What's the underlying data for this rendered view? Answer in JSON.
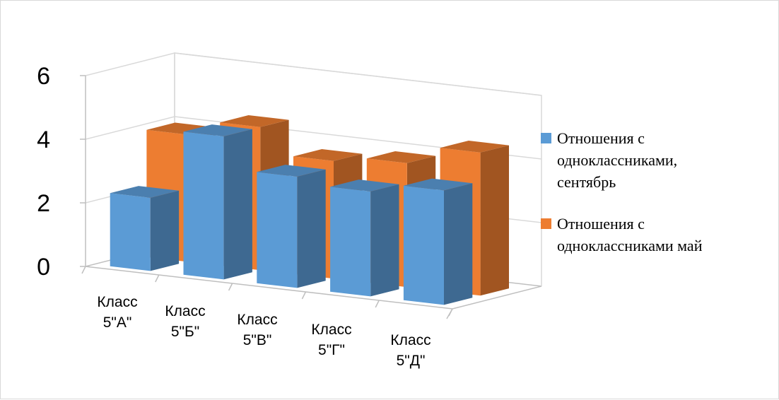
{
  "chart_data": {
    "type": "bar",
    "subtype": "3d-clustered-column",
    "title": "",
    "xlabel": "",
    "ylabel": "",
    "ylim": [
      0,
      6
    ],
    "yticks": [
      "0",
      "2",
      "4",
      "6"
    ],
    "grid": true,
    "legend_position": "right",
    "categories": [
      [
        "Класс",
        "5\"А\""
      ],
      [
        "Класс",
        "5\"Б\""
      ],
      [
        "Класс",
        "5\"В\""
      ],
      [
        "Класс",
        "5\"Г\""
      ],
      [
        "Класс",
        "5\"Д\""
      ]
    ],
    "series": [
      {
        "name": [
          "Отношения с",
          "одноклассниками,",
          "сентябрь"
        ],
        "color": "#5B9BD5",
        "values": [
          2.3,
          4.5,
          3.5,
          3.3,
          3.6
        ]
      },
      {
        "name": [
          "Отношения с",
          "одноклассниками май"
        ],
        "color": "#ED7D31",
        "values": [
          4.0,
          4.5,
          3.7,
          3.9,
          4.5
        ]
      }
    ]
  }
}
